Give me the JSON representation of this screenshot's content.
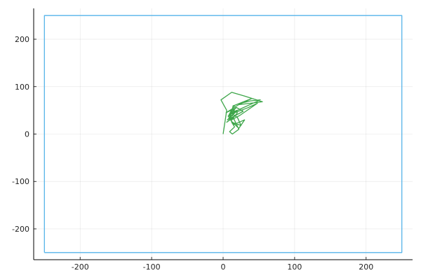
{
  "chart_data": {
    "type": "line",
    "title": "",
    "xlabel": "",
    "ylabel": "",
    "xlim": [
      -265,
      265
    ],
    "ylim": [
      -265,
      265
    ],
    "grid": true,
    "legend": "none",
    "x_ticks": [
      -200,
      -100,
      0,
      100,
      200
    ],
    "y_ticks": [
      -200,
      -100,
      0,
      100,
      200
    ],
    "x_tick_labels": [
      "-200",
      "-100",
      "0",
      "100",
      "200"
    ],
    "y_tick_labels": [
      "-200",
      "-100",
      "0",
      "100",
      "200"
    ],
    "series": [
      {
        "color": "#56b4e9",
        "x": [
          -250,
          250,
          250,
          -250,
          -250
        ],
        "y": [
          -250,
          -250,
          250,
          250,
          -250
        ]
      },
      {
        "color": "#3ea64a",
        "x": [
          0,
          5,
          -3,
          12,
          30,
          55,
          22,
          40,
          15,
          8,
          18,
          4,
          25,
          38,
          52,
          20,
          10,
          14,
          28,
          6,
          16,
          34,
          48,
          24,
          12,
          9,
          19,
          7,
          15,
          30,
          22,
          11,
          17,
          5,
          14,
          22,
          13,
          9,
          16,
          12,
          25,
          20,
          10,
          14,
          18,
          8,
          12,
          20,
          15,
          13
        ],
        "y": [
          0,
          50,
          72,
          88,
          80,
          68,
          62,
          75,
          60,
          40,
          55,
          45,
          65,
          70,
          72,
          50,
          35,
          60,
          48,
          30,
          45,
          55,
          65,
          40,
          30,
          42,
          50,
          38,
          20,
          30,
          12,
          28,
          40,
          25,
          35,
          10,
          0,
          5,
          15,
          25,
          18,
          35,
          45,
          50,
          55,
          40,
          30,
          45,
          50,
          38
        ]
      }
    ]
  }
}
